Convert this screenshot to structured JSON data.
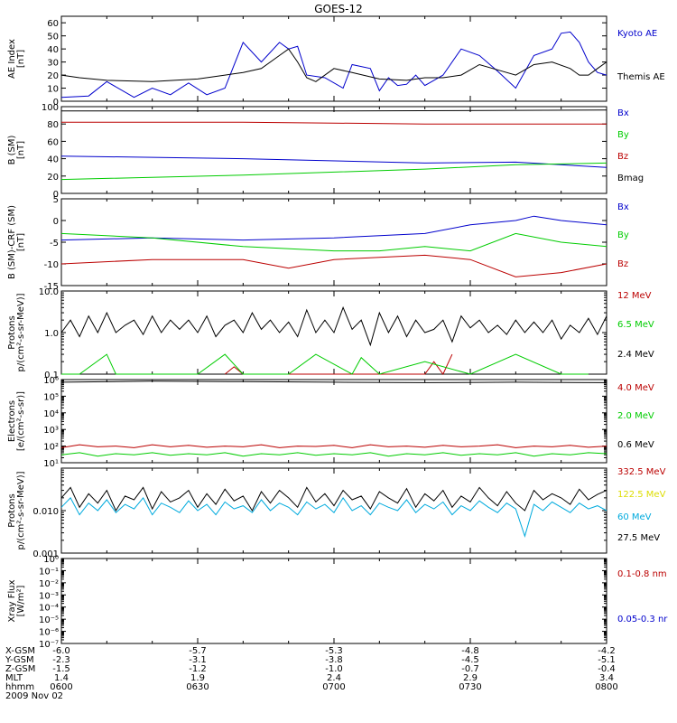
{
  "title": "GOES-12",
  "colors": {
    "black": "#000000",
    "blue": "#0000cc",
    "red": "#bb0000",
    "green": "#00cc00",
    "yellow": "#dddd00",
    "cyan": "#00aadd"
  },
  "chart_data": [
    {
      "type": "line",
      "ylabel": [
        "AE Index",
        "[nT]"
      ],
      "ylim": [
        0,
        65
      ],
      "yticks": [
        0,
        10,
        20,
        30,
        40,
        50,
        60
      ],
      "yticklabels": [
        "0",
        "10",
        "20",
        "30",
        "40",
        "50",
        "60"
      ],
      "series": [
        {
          "name": "Kyoto AE",
          "color": "blue",
          "x": [
            0,
            3,
            5,
            8,
            10,
            12,
            14,
            16,
            18,
            20,
            22,
            24,
            25,
            26,
            27,
            29,
            31,
            32,
            34,
            35,
            36,
            37,
            38,
            39,
            40,
            41,
            42,
            44,
            46,
            48,
            50,
            52,
            54,
            55,
            56,
            57,
            58,
            59,
            60
          ],
          "y": [
            3,
            4,
            15,
            3,
            10,
            5,
            14,
            5,
            10,
            45,
            30,
            45,
            40,
            42,
            20,
            18,
            10,
            28,
            25,
            8,
            18,
            12,
            13,
            20,
            12,
            16,
            20,
            40,
            35,
            23,
            10,
            35,
            40,
            52,
            53,
            45,
            30,
            22,
            20
          ]
        },
        {
          "name": "Themis AE",
          "color": "black",
          "x": [
            0,
            2,
            5,
            10,
            15,
            18,
            20,
            22,
            24,
            25,
            26,
            27,
            28,
            30,
            32,
            35,
            38,
            40,
            42,
            44,
            46,
            48,
            50,
            52,
            54,
            56,
            57,
            58,
            59,
            60
          ],
          "y": [
            20,
            18,
            16,
            15,
            17,
            20,
            22,
            25,
            35,
            40,
            30,
            18,
            15,
            25,
            22,
            17,
            16,
            18,
            18,
            20,
            28,
            24,
            20,
            28,
            30,
            25,
            20,
            20,
            25,
            30
          ]
        }
      ]
    },
    {
      "type": "line",
      "ylabel": [
        "B (SM)",
        "[nT]"
      ],
      "ylim": [
        0,
        100
      ],
      "yticks": [
        0,
        20,
        40,
        60,
        80,
        100
      ],
      "yticklabels": [
        "0",
        "20",
        "40",
        "60",
        "80",
        "100"
      ],
      "series": [
        {
          "name": "Bx",
          "color": "blue",
          "x": [
            0,
            20,
            40,
            50,
            60
          ],
          "y": [
            43,
            40,
            35,
            36,
            30
          ]
        },
        {
          "name": "By",
          "color": "green",
          "x": [
            0,
            20,
            40,
            50,
            60
          ],
          "y": [
            16,
            21,
            28,
            33,
            35
          ]
        },
        {
          "name": "Bz",
          "color": "red",
          "x": [
            0,
            20,
            30,
            40,
            50,
            60
          ],
          "y": [
            82,
            82,
            81,
            80,
            80,
            80
          ]
        },
        {
          "name": "Bmag",
          "color": "black",
          "x": [
            0,
            30,
            60
          ],
          "y": [
            95,
            95,
            96
          ]
        }
      ]
    },
    {
      "type": "line",
      "ylabel": [
        "B (SM)-CRF (SM)",
        "[nT]"
      ],
      "ylim": [
        -15,
        5
      ],
      "yticks": [
        -15,
        -10,
        -5,
        0,
        5
      ],
      "yticklabels": [
        "-15",
        "-10",
        "-5",
        "0",
        "5"
      ],
      "series": [
        {
          "name": "Bx",
          "color": "blue",
          "x": [
            0,
            10,
            20,
            30,
            40,
            45,
            50,
            52,
            55,
            60
          ],
          "y": [
            -4.5,
            -4,
            -4.5,
            -4,
            -3,
            -1,
            0,
            1,
            0,
            -1
          ]
        },
        {
          "name": "By",
          "color": "green",
          "x": [
            0,
            10,
            20,
            30,
            35,
            40,
            45,
            50,
            55,
            60
          ],
          "y": [
            -3,
            -4,
            -6,
            -7,
            -7,
            -6,
            -7,
            -3,
            -5,
            -6
          ]
        },
        {
          "name": "Bz",
          "color": "red",
          "x": [
            0,
            10,
            20,
            25,
            30,
            40,
            45,
            50,
            55,
            60
          ],
          "y": [
            -10,
            -9,
            -9,
            -11,
            -9,
            -8,
            -9,
            -13,
            -12,
            -10
          ]
        }
      ]
    },
    {
      "type": "line",
      "ylabel": [
        "Protons",
        "p/(cm²-s-sr-MeV)]"
      ],
      "log": true,
      "ylim": [
        0.1,
        10
      ],
      "yticks": [
        0.1,
        1,
        10
      ],
      "yticklabels": [
        "0.1",
        "1.0",
        "10.0"
      ],
      "series": [
        {
          "name": "12 MeV",
          "color": "red",
          "x": [
            18,
            19,
            20,
            21,
            40,
            41,
            42,
            43
          ],
          "y": [
            0.1,
            0.15,
            0.1,
            0.1,
            0.1,
            0.2,
            0.1,
            0.3
          ]
        },
        {
          "name": "6.5 MeV",
          "color": "green",
          "x": [
            0,
            2,
            5,
            6,
            10,
            15,
            18,
            20,
            25,
            28,
            32,
            33,
            35,
            40,
            45,
            50,
            55,
            58
          ],
          "y": [
            0.1,
            0.1,
            0.3,
            0.1,
            0.1,
            0.1,
            0.3,
            0.1,
            0.1,
            0.3,
            0.1,
            0.25,
            0.1,
            0.2,
            0.1,
            0.3,
            0.1,
            0.1
          ]
        },
        {
          "name": "2.4 MeV",
          "color": "black",
          "x": [
            0,
            1,
            2,
            3,
            4,
            5,
            6,
            7,
            8,
            9,
            10,
            11,
            12,
            13,
            14,
            15,
            16,
            17,
            18,
            19,
            20,
            21,
            22,
            23,
            24,
            25,
            26,
            27,
            28,
            29,
            30,
            31,
            32,
            33,
            34,
            35,
            36,
            37,
            38,
            39,
            40,
            41,
            42,
            43,
            44,
            45,
            46,
            47,
            48,
            49,
            50,
            51,
            52,
            53,
            54,
            55,
            56,
            57,
            58,
            59,
            60
          ],
          "y": [
            1,
            2,
            0.8,
            2.5,
            1,
            3,
            1,
            1.5,
            2,
            0.9,
            2.5,
            1,
            2,
            1.2,
            2,
            1,
            2.5,
            0.8,
            1.5,
            2,
            1,
            3,
            1.2,
            2,
            1,
            1.8,
            0.8,
            3.5,
            1,
            2,
            1,
            4,
            1.2,
            2,
            0.5,
            3,
            1,
            2.5,
            0.8,
            2,
            1,
            1.2,
            2,
            0.6,
            2.5,
            1.3,
            2,
            1,
            1.5,
            0.9,
            2,
            1,
            1.8,
            1,
            2,
            0.7,
            1.5,
            1,
            2.2,
            0.9,
            2.5
          ]
        }
      ]
    },
    {
      "type": "line",
      "ylabel": [
        "Electrons",
        "[e/(cm²-s-sr)]"
      ],
      "log": true,
      "ylim": [
        10,
        1000000
      ],
      "yticks": [
        10,
        100,
        1000,
        10000,
        100000,
        1000000
      ],
      "yticklabels": [
        "10¹",
        "10²",
        "10³",
        "10⁴",
        "10⁵",
        "10⁶"
      ],
      "series": [
        {
          "name": "4.0 MeV",
          "color": "red",
          "x": [
            0,
            2,
            4,
            6,
            8,
            10,
            12,
            14,
            16,
            18,
            20,
            22,
            24,
            26,
            28,
            30,
            32,
            34,
            36,
            38,
            40,
            42,
            44,
            46,
            48,
            50,
            52,
            54,
            56,
            58,
            60
          ],
          "y": [
            80,
            120,
            90,
            100,
            80,
            120,
            90,
            110,
            85,
            100,
            90,
            120,
            80,
            100,
            95,
            110,
            80,
            120,
            90,
            100,
            85,
            110,
            90,
            100,
            120,
            80,
            100,
            90,
            110,
            85,
            100
          ]
        },
        {
          "name": "2.0 MeV",
          "color": "green",
          "x": [
            0,
            2,
            4,
            6,
            8,
            10,
            12,
            14,
            16,
            18,
            20,
            22,
            24,
            26,
            28,
            30,
            32,
            34,
            36,
            38,
            40,
            42,
            44,
            46,
            48,
            50,
            52,
            54,
            56,
            58,
            60
          ],
          "y": [
            30,
            40,
            25,
            35,
            30,
            40,
            28,
            35,
            30,
            40,
            25,
            35,
            30,
            40,
            28,
            35,
            30,
            40,
            25,
            35,
            30,
            40,
            28,
            35,
            30,
            40,
            25,
            35,
            30,
            40,
            35
          ]
        },
        {
          "name": "0.6 MeV",
          "color": "black",
          "x": [
            0,
            10,
            20,
            30,
            40,
            50,
            60
          ],
          "y": [
            700000,
            800000,
            750000,
            700000,
            650000,
            700000,
            650000
          ]
        }
      ]
    },
    {
      "type": "line",
      "ylabel": [
        "Protons",
        "p/(cm²-s-sr-MeV)]"
      ],
      "log": true,
      "ylim": [
        0.001,
        0.1
      ],
      "yticks": [
        0.001,
        0.01
      ],
      "yticklabels": [
        "0.001",
        "0.010"
      ],
      "series": [
        {
          "name": "332.5 MeV",
          "color": "red",
          "x": [],
          "y": []
        },
        {
          "name": "122.5 MeV",
          "color": "yellow",
          "x": [],
          "y": []
        },
        {
          "name": "60 MeV",
          "color": "cyan",
          "x": [
            0,
            1,
            2,
            3,
            4,
            5,
            6,
            7,
            8,
            9,
            10,
            11,
            12,
            13,
            14,
            15,
            16,
            17,
            18,
            19,
            20,
            21,
            22,
            23,
            24,
            25,
            26,
            27,
            28,
            29,
            30,
            31,
            32,
            33,
            34,
            35,
            36,
            37,
            38,
            39,
            40,
            41,
            42,
            43,
            44,
            45,
            46,
            47,
            48,
            49,
            50,
            51,
            52,
            53,
            54,
            55,
            56,
            57,
            58,
            59,
            60
          ],
          "y": [
            0.012,
            0.02,
            0.008,
            0.015,
            0.01,
            0.018,
            0.009,
            0.014,
            0.011,
            0.02,
            0.008,
            0.015,
            0.012,
            0.009,
            0.017,
            0.01,
            0.014,
            0.008,
            0.016,
            0.011,
            0.013,
            0.009,
            0.018,
            0.01,
            0.015,
            0.012,
            0.008,
            0.016,
            0.011,
            0.014,
            0.009,
            0.02,
            0.01,
            0.013,
            0.008,
            0.015,
            0.012,
            0.01,
            0.018,
            0.009,
            0.014,
            0.011,
            0.016,
            0.008,
            0.013,
            0.01,
            0.017,
            0.012,
            0.009,
            0.015,
            0.011,
            0.0025,
            0.014,
            0.01,
            0.016,
            0.012,
            0.009,
            0.015,
            0.011,
            0.013,
            0.01
          ]
        },
        {
          "name": "27.5 MeV",
          "color": "black",
          "x": [
            0,
            1,
            2,
            3,
            4,
            5,
            6,
            7,
            8,
            9,
            10,
            11,
            12,
            13,
            14,
            15,
            16,
            17,
            18,
            19,
            20,
            21,
            22,
            23,
            24,
            25,
            26,
            27,
            28,
            29,
            30,
            31,
            32,
            33,
            34,
            35,
            36,
            37,
            38,
            39,
            40,
            41,
            42,
            43,
            44,
            45,
            46,
            47,
            48,
            49,
            50,
            51,
            52,
            53,
            54,
            55,
            56,
            57,
            58,
            59,
            60
          ],
          "y": [
            0.02,
            0.035,
            0.012,
            0.025,
            0.015,
            0.03,
            0.01,
            0.022,
            0.018,
            0.035,
            0.011,
            0.028,
            0.016,
            0.02,
            0.03,
            0.012,
            0.025,
            0.014,
            0.032,
            0.017,
            0.022,
            0.01,
            0.028,
            0.015,
            0.03,
            0.02,
            0.012,
            0.035,
            0.016,
            0.025,
            0.013,
            0.03,
            0.018,
            0.022,
            0.011,
            0.028,
            0.02,
            0.015,
            0.033,
            0.012,
            0.025,
            0.017,
            0.03,
            0.012,
            0.022,
            0.016,
            0.035,
            0.02,
            0.013,
            0.028,
            0.015,
            0.01,
            0.03,
            0.018,
            0.025,
            0.02,
            0.014,
            0.032,
            0.018,
            0.024,
            0.03
          ]
        }
      ]
    },
    {
      "type": "line",
      "ylabel": [
        "Xray Flux",
        "[W/m²]"
      ],
      "log": true,
      "ylim": [
        1e-07,
        1
      ],
      "yticks": [
        1e-07,
        1e-06,
        1e-05,
        0.0001,
        0.001,
        0.01,
        0.1,
        1
      ],
      "yticklabels": [
        "10⁻⁷",
        "10⁻⁶",
        "10⁻⁵",
        "10⁻⁴",
        "10⁻³",
        "10⁻²",
        "10⁻¹",
        "10⁰"
      ],
      "series": [
        {
          "name": "0.1-0.8 nm",
          "color": "red",
          "x": [],
          "y": []
        },
        {
          "name": "0.05-0.3 nr",
          "color": "blue",
          "x": [],
          "y": []
        }
      ]
    }
  ],
  "xaxis": {
    "row_labels": [
      "X-GSM",
      "Y-GSM",
      "Z-GSM",
      "MLT",
      "hhmm",
      "2009 Nov 02"
    ],
    "columns": [
      {
        "x": 0,
        "vals": [
          "-6.0",
          "-2.3",
          "-1.5",
          "1.4",
          "0600"
        ]
      },
      {
        "x": 15,
        "vals": [
          "-5.7",
          "-3.1",
          "-1.2",
          "1.9",
          "0630"
        ]
      },
      {
        "x": 30,
        "vals": [
          "-5.3",
          "-3.8",
          "-1.0",
          "2.4",
          "0700"
        ]
      },
      {
        "x": 45,
        "vals": [
          "-4.8",
          "-4.5",
          "-0.7",
          "2.9",
          "0730"
        ]
      },
      {
        "x": 60,
        "vals": [
          "-4.2",
          "-5.1",
          "-0.4",
          "3.4",
          "0800"
        ]
      }
    ]
  }
}
